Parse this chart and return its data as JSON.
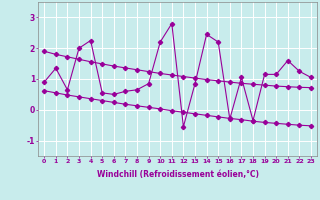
{
  "xlabel": "Windchill (Refroidissement éolien,°C)",
  "ylabel": "",
  "background_color": "#c8ecec",
  "grid_color": "#ffffff",
  "line_color": "#990099",
  "xlim": [
    -0.5,
    23.5
  ],
  "ylim": [
    -1.5,
    3.5
  ],
  "yticks": [
    -1,
    0,
    1,
    2,
    3
  ],
  "xticks": [
    0,
    1,
    2,
    3,
    4,
    5,
    6,
    7,
    8,
    9,
    10,
    11,
    12,
    13,
    14,
    15,
    16,
    17,
    18,
    19,
    20,
    21,
    22,
    23
  ],
  "line_main": [
    0.9,
    1.35,
    0.65,
    2.0,
    2.25,
    0.55,
    0.5,
    0.6,
    0.65,
    0.85,
    2.2,
    2.8,
    -0.55,
    0.85,
    2.45,
    2.2,
    -0.3,
    1.05,
    -0.35,
    1.15,
    1.15,
    1.6,
    1.25,
    1.05
  ],
  "trend_upper": [
    1.9,
    1.8,
    1.72,
    1.64,
    1.56,
    1.49,
    1.42,
    1.36,
    1.3,
    1.24,
    1.18,
    1.13,
    1.08,
    1.03,
    0.98,
    0.94,
    0.9,
    0.86,
    0.83,
    0.8,
    0.77,
    0.75,
    0.73,
    0.72
  ],
  "trend_lower": [
    0.62,
    0.55,
    0.48,
    0.42,
    0.36,
    0.3,
    0.24,
    0.18,
    0.13,
    0.08,
    0.03,
    -0.03,
    -0.08,
    -0.13,
    -0.18,
    -0.23,
    -0.28,
    -0.32,
    -0.37,
    -0.41,
    -0.44,
    -0.47,
    -0.5,
    -0.52
  ]
}
